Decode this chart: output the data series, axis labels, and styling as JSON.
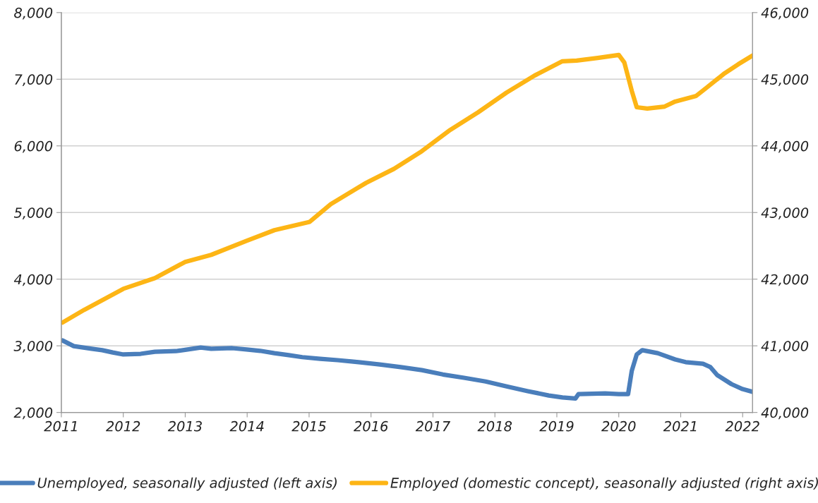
{
  "chart_data": {
    "type": "line",
    "xlim": [
      2011,
      2022.16
    ],
    "xticks": [
      2011,
      2012,
      2013,
      2014,
      2015,
      2016,
      2017,
      2018,
      2019,
      2020,
      2021,
      2022
    ],
    "ylim": [
      2000,
      8000
    ],
    "yticks": [
      {
        "value": 2000,
        "label": "2,000"
      },
      {
        "value": 3000,
        "label": "3,000"
      },
      {
        "value": 4000,
        "label": "4,000"
      },
      {
        "value": 5000,
        "label": "5,000"
      },
      {
        "value": 6000,
        "label": "6,000"
      },
      {
        "value": 7000,
        "label": "7,000"
      },
      {
        "value": 8000,
        "label": "8,000"
      }
    ],
    "y2lim": [
      40000,
      46000
    ],
    "y2ticks": [
      {
        "value": 40000,
        "label": "40,000"
      },
      {
        "value": 41000,
        "label": "41,000"
      },
      {
        "value": 42000,
        "label": "42,000"
      },
      {
        "value": 43000,
        "label": "43,000"
      },
      {
        "value": 44000,
        "label": "44,000"
      },
      {
        "value": 45000,
        "label": "45,000"
      },
      {
        "value": 46000,
        "label": "46,000"
      }
    ],
    "grid": "y",
    "legend": "bottom",
    "series": [
      {
        "name": "Unemployed, seasonally adjusted (left axis)",
        "color": "#4a7ebb",
        "x": [
          2011.02,
          2011.2,
          2011.49,
          2011.66,
          2011.83,
          2012.0,
          2012.28,
          2012.51,
          2012.85,
          2013.0,
          2013.25,
          2013.42,
          2013.76,
          2013.99,
          2014.21,
          2014.44,
          2014.67,
          2014.89,
          2015.18,
          2015.46,
          2015.8,
          2016.14,
          2016.48,
          2016.82,
          2017.16,
          2017.5,
          2017.85,
          2018.19,
          2018.53,
          2018.87,
          2019.09,
          2019.3,
          2019.35,
          2019.78,
          2020.0,
          2020.15,
          2020.21,
          2020.29,
          2020.38,
          2020.63,
          2020.91,
          2021.08,
          2021.36,
          2021.48,
          2021.59,
          2021.82,
          2022.0,
          2022.16
        ],
        "values": [
          3080,
          2995,
          2955,
          2935,
          2900,
          2870,
          2880,
          2910,
          2920,
          2940,
          2975,
          2955,
          2965,
          2945,
          2925,
          2890,
          2860,
          2830,
          2805,
          2785,
          2755,
          2720,
          2680,
          2635,
          2570,
          2520,
          2465,
          2390,
          2320,
          2255,
          2225,
          2210,
          2275,
          2285,
          2275,
          2275,
          2625,
          2870,
          2935,
          2890,
          2795,
          2755,
          2730,
          2680,
          2560,
          2425,
          2350,
          2310
        ]
      },
      {
        "name": "Employed (domestic concept), seasonally adjusted (right axis)",
        "color": "#fdb515",
        "axis": "y2",
        "x": [
          2011.02,
          2011.37,
          2012.0,
          2012.51,
          2013.0,
          2013.42,
          2013.99,
          2014.44,
          2014.78,
          2015.01,
          2015.35,
          2015.92,
          2016.37,
          2016.82,
          2017.28,
          2017.73,
          2018.19,
          2018.64,
          2019.09,
          2019.32,
          2019.66,
          2020.0,
          2020.09,
          2020.21,
          2020.29,
          2020.46,
          2020.74,
          2020.91,
          2021.25,
          2021.42,
          2021.71,
          2021.93,
          2022.16
        ],
        "values": [
          41350,
          41540,
          41855,
          42015,
          42260,
          42365,
          42575,
          42735,
          42810,
          42860,
          43125,
          43445,
          43655,
          43920,
          44240,
          44505,
          44800,
          45055,
          45270,
          45280,
          45320,
          45365,
          45250,
          44825,
          44580,
          44560,
          44590,
          44665,
          44750,
          44875,
          45090,
          45225,
          45355
        ]
      }
    ]
  }
}
